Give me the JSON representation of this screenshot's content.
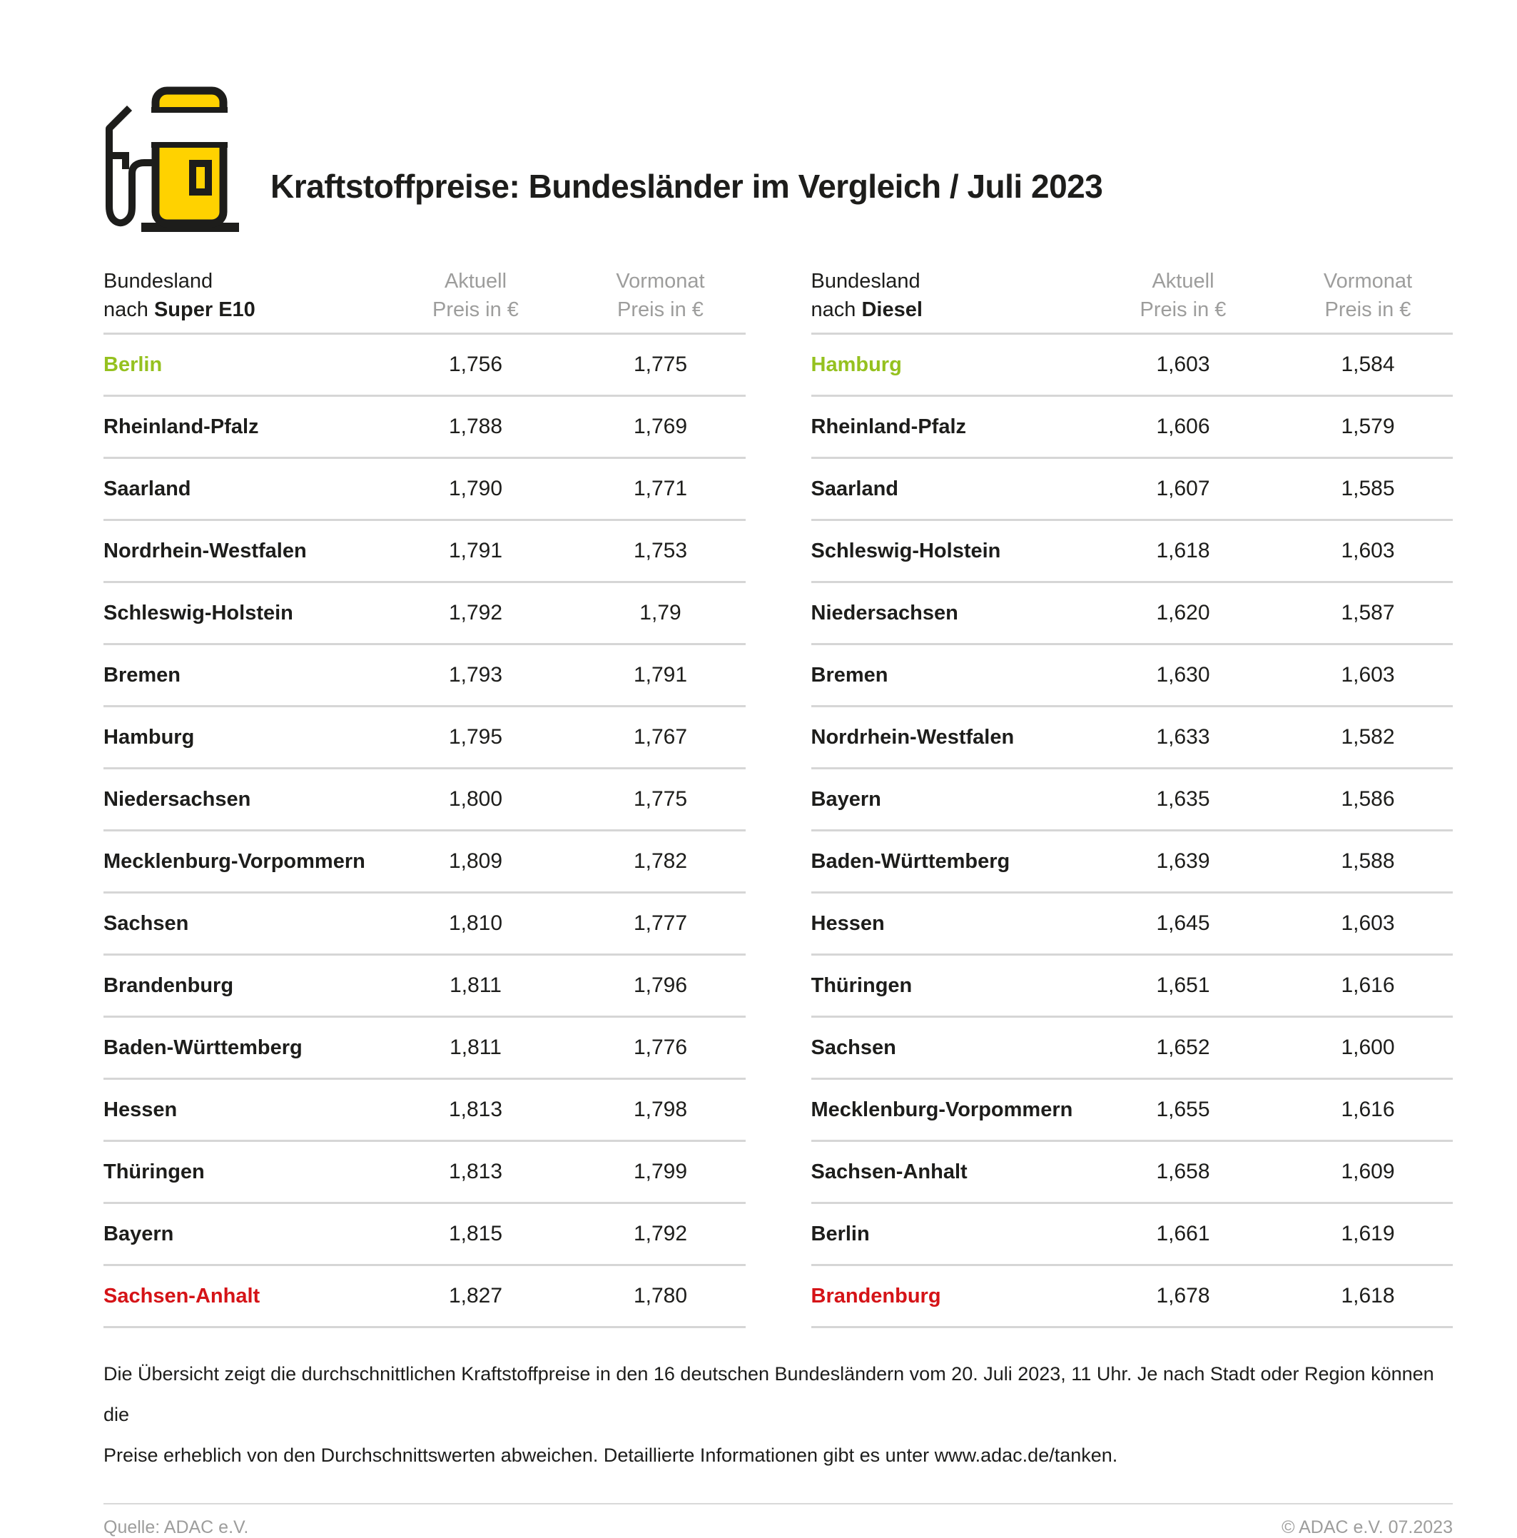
{
  "title": "Kraftstoffpreise: Bundesländer im Vergleich / Juli 2023",
  "icon": {
    "name": "fuel-pump-icon",
    "yellow": "#ffd200",
    "outline": "#1d1d1b"
  },
  "colors": {
    "lowest_price_green": "#95c11f",
    "highest_price_red": "#d51317",
    "header_gray": "#9d9d9c",
    "divider_gray": "#d6d6d6"
  },
  "tables": [
    {
      "id": "super-e10",
      "header": {
        "col1_line1": "Bundesland",
        "col1_prefix": "nach ",
        "col1_fuel": "Super E10",
        "col2_line1": "Aktuell",
        "col2_line2": "Preis in €",
        "col3_line1": "Vormonat",
        "col3_line2": "Preis in €"
      },
      "rows": [
        {
          "name": "Berlin",
          "aktuell": "1,756",
          "vormonat": "1,775",
          "highlight": "green"
        },
        {
          "name": "Rheinland-Pfalz",
          "aktuell": "1,788",
          "vormonat": "1,769"
        },
        {
          "name": "Saarland",
          "aktuell": "1,790",
          "vormonat": "1,771"
        },
        {
          "name": "Nordrhein-Westfalen",
          "aktuell": "1,791",
          "vormonat": "1,753"
        },
        {
          "name": "Schleswig-Holstein",
          "aktuell": "1,792",
          "vormonat": "1,79"
        },
        {
          "name": "Bremen",
          "aktuell": "1,793",
          "vormonat": "1,791"
        },
        {
          "name": "Hamburg",
          "aktuell": "1,795",
          "vormonat": "1,767"
        },
        {
          "name": "Niedersachsen",
          "aktuell": "1,800",
          "vormonat": "1,775"
        },
        {
          "name": "Mecklenburg-Vorpommern",
          "aktuell": "1,809",
          "vormonat": "1,782"
        },
        {
          "name": "Sachsen",
          "aktuell": "1,810",
          "vormonat": "1,777"
        },
        {
          "name": "Brandenburg",
          "aktuell": "1,811",
          "vormonat": "1,796"
        },
        {
          "name": "Baden-Württemberg",
          "aktuell": "1,811",
          "vormonat": "1,776"
        },
        {
          "name": "Hessen",
          "aktuell": "1,813",
          "vormonat": "1,798"
        },
        {
          "name": "Thüringen",
          "aktuell": "1,813",
          "vormonat": "1,799"
        },
        {
          "name": "Bayern",
          "aktuell": "1,815",
          "vormonat": "1,792"
        },
        {
          "name": "Sachsen-Anhalt",
          "aktuell": "1,827",
          "vormonat": "1,780",
          "highlight": "red"
        }
      ]
    },
    {
      "id": "diesel",
      "header": {
        "col1_line1": "Bundesland",
        "col1_prefix": "nach ",
        "col1_fuel": "Diesel",
        "col2_line1": "Aktuell",
        "col2_line2": "Preis in €",
        "col3_line1": "Vormonat",
        "col3_line2": "Preis in €"
      },
      "rows": [
        {
          "name": "Hamburg",
          "aktuell": "1,603",
          "vormonat": "1,584",
          "highlight": "green"
        },
        {
          "name": "Rheinland-Pfalz",
          "aktuell": "1,606",
          "vormonat": "1,579"
        },
        {
          "name": "Saarland",
          "aktuell": "1,607",
          "vormonat": "1,585"
        },
        {
          "name": "Schleswig-Holstein",
          "aktuell": "1,618",
          "vormonat": "1,603"
        },
        {
          "name": "Niedersachsen",
          "aktuell": "1,620",
          "vormonat": "1,587"
        },
        {
          "name": "Bremen",
          "aktuell": "1,630",
          "vormonat": "1,603"
        },
        {
          "name": "Nordrhein-Westfalen",
          "aktuell": "1,633",
          "vormonat": "1,582"
        },
        {
          "name": "Bayern",
          "aktuell": "1,635",
          "vormonat": "1,586"
        },
        {
          "name": "Baden-Württemberg",
          "aktuell": "1,639",
          "vormonat": "1,588"
        },
        {
          "name": "Hessen",
          "aktuell": "1,645",
          "vormonat": "1,603"
        },
        {
          "name": "Thüringen",
          "aktuell": "1,651",
          "vormonat": "1,616"
        },
        {
          "name": "Sachsen",
          "aktuell": "1,652",
          "vormonat": "1,600"
        },
        {
          "name": "Mecklenburg-Vorpommern",
          "aktuell": "1,655",
          "vormonat": "1,616"
        },
        {
          "name": "Sachsen-Anhalt",
          "aktuell": "1,658",
          "vormonat": "1,609"
        },
        {
          "name": "Berlin",
          "aktuell": "1,661",
          "vormonat": "1,619"
        },
        {
          "name": "Brandenburg",
          "aktuell": "1,678",
          "vormonat": "1,618",
          "highlight": "red"
        }
      ]
    }
  ],
  "footnote": {
    "line1": "Die Übersicht zeigt die durchschnittlichen Kraftstoffpreise in den 16 deutschen Bundesländern vom 20. Juli 2023, 11 Uhr. Je nach Stadt oder Region können die",
    "line2": "Preise erheblich von den Durchschnittswerten abweichen. Detaillierte Informationen gibt es unter www.adac.de/tanken."
  },
  "source_left": "Quelle: ADAC e.V.",
  "source_right": "© ADAC e.V. 07.2023",
  "chart_data": [
    {
      "type": "table",
      "title": "Bundesland nach Super E10",
      "columns": [
        "Bundesland",
        "Aktuell Preis in €",
        "Vormonat Preis in €"
      ],
      "rows": [
        [
          "Berlin",
          1.756,
          1.775
        ],
        [
          "Rheinland-Pfalz",
          1.788,
          1.769
        ],
        [
          "Saarland",
          1.79,
          1.771
        ],
        [
          "Nordrhein-Westfalen",
          1.791,
          1.753
        ],
        [
          "Schleswig-Holstein",
          1.792,
          1.79
        ],
        [
          "Bremen",
          1.793,
          1.791
        ],
        [
          "Hamburg",
          1.795,
          1.767
        ],
        [
          "Niedersachsen",
          1.8,
          1.775
        ],
        [
          "Mecklenburg-Vorpommern",
          1.809,
          1.782
        ],
        [
          "Sachsen",
          1.81,
          1.777
        ],
        [
          "Brandenburg",
          1.811,
          1.796
        ],
        [
          "Baden-Württemberg",
          1.811,
          1.776
        ],
        [
          "Hessen",
          1.813,
          1.798
        ],
        [
          "Thüringen",
          1.813,
          1.799
        ],
        [
          "Bayern",
          1.815,
          1.792
        ],
        [
          "Sachsen-Anhalt",
          1.827,
          1.78
        ]
      ],
      "annotations": {
        "lowest_highlighted_green": "Berlin",
        "highest_highlighted_red": "Sachsen-Anhalt"
      }
    },
    {
      "type": "table",
      "title": "Bundesland nach Diesel",
      "columns": [
        "Bundesland",
        "Aktuell Preis in €",
        "Vormonat Preis in €"
      ],
      "rows": [
        [
          "Hamburg",
          1.603,
          1.584
        ],
        [
          "Rheinland-Pfalz",
          1.606,
          1.579
        ],
        [
          "Saarland",
          1.607,
          1.585
        ],
        [
          "Schleswig-Holstein",
          1.618,
          1.603
        ],
        [
          "Niedersachsen",
          1.62,
          1.587
        ],
        [
          "Bremen",
          1.63,
          1.603
        ],
        [
          "Nordrhein-Westfalen",
          1.633,
          1.582
        ],
        [
          "Bayern",
          1.635,
          1.586
        ],
        [
          "Baden-Württemberg",
          1.639,
          1.588
        ],
        [
          "Hessen",
          1.645,
          1.603
        ],
        [
          "Thüringen",
          1.651,
          1.616
        ],
        [
          "Sachsen",
          1.652,
          1.6
        ],
        [
          "Mecklenburg-Vorpommern",
          1.655,
          1.616
        ],
        [
          "Sachsen-Anhalt",
          1.658,
          1.609
        ],
        [
          "Berlin",
          1.661,
          1.619
        ],
        [
          "Brandenburg",
          1.678,
          1.618
        ]
      ],
      "annotations": {
        "lowest_highlighted_green": "Hamburg",
        "highest_highlighted_red": "Brandenburg"
      }
    }
  ]
}
